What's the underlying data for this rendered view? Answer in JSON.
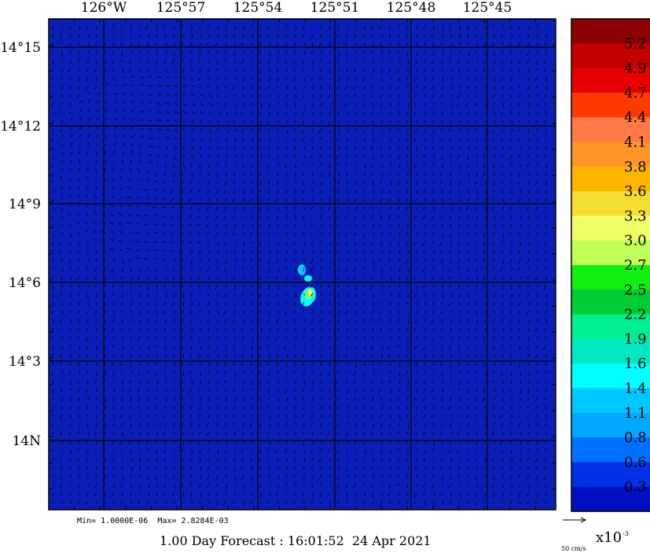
{
  "map": {
    "longitude_labels": [
      "126°W",
      "125°57",
      "125°54",
      "125°51",
      "125°48",
      "125°45"
    ],
    "latitude_labels": [
      "14°15",
      "14°12",
      "14°9",
      "14°6",
      "14°3",
      "14N"
    ],
    "field_color": "#0a1fb8",
    "vector_color": "#000000",
    "grid_color": "#000000",
    "hotspot_colors": [
      "#00ffff",
      "#00d2ff",
      "#80ff80",
      "#ffff00"
    ]
  },
  "stats": {
    "text": "Min= 1.0000E-06  Max= 2.8284E-03"
  },
  "title": "1.00 Day Forecast : 16:01:52  24 Apr 2021",
  "colorbar": {
    "labels": [
      "5.2",
      "4.9",
      "4.7",
      "4.4",
      "4.1",
      "3.8",
      "3.6",
      "3.3",
      "3.0",
      "2.7",
      "2.5",
      "2.2",
      "1.9",
      "1.6",
      "1.4",
      "1.1",
      "0.8",
      "0.6",
      "0.3"
    ],
    "colors": [
      "#8b0000",
      "#c40000",
      "#e60000",
      "#ff3a00",
      "#ff7a45",
      "#ff9528",
      "#ffb400",
      "#f5dc30",
      "#f0ff66",
      "#c0ff55",
      "#10f010",
      "#00cc33",
      "#00f090",
      "#00e8c0",
      "#00ffff",
      "#00c8ff",
      "#00a8ff",
      "#0070ff",
      "#0030e8",
      "#0010c0"
    ],
    "multiplier": "x10",
    "exponent": "-3"
  },
  "legend": {
    "vector_label": "50 cm/s"
  }
}
